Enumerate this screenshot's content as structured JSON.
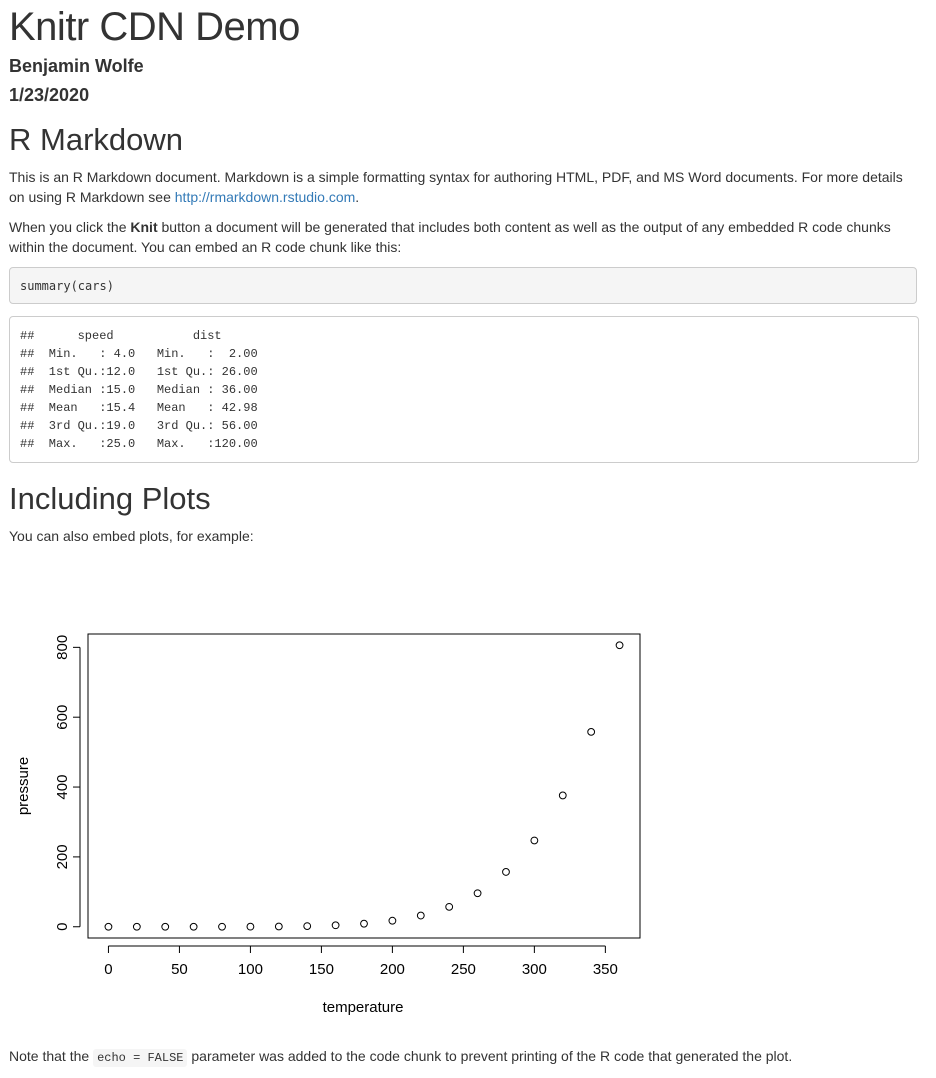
{
  "header": {
    "title": "Knitr CDN Demo",
    "author": "Benjamin Wolfe",
    "date": "1/23/2020"
  },
  "rmarkdown": {
    "heading": "R Markdown",
    "p1_text": "This is an R Markdown document. Markdown is a simple formatting syntax for authoring HTML, PDF, and MS Word documents. For more details on using R Markdown see ",
    "p1_link": "http://rmarkdown.rstudio.com",
    "p1_end": ".",
    "p2_pre": "When you click the ",
    "p2_bold": "Knit",
    "p2_post": " button a document will be generated that includes both content as well as the output of any embedded R code chunks within the document. You can embed an R code chunk like this:",
    "code": "summary(cars)",
    "output_lines": [
      "##      speed           dist       ",
      "##  Min.   : 4.0   Min.   :  2.00  ",
      "##  1st Qu.:12.0   1st Qu.: 26.00  ",
      "##  Median :15.0   Median : 36.00  ",
      "##  Mean   :15.4   Mean   : 42.98  ",
      "##  3rd Qu.:19.0   3rd Qu.: 56.00  ",
      "##  Max.   :25.0   Max.   :120.00  "
    ]
  },
  "plots": {
    "heading": "Including Plots",
    "intro": "You can also embed plots, for example:",
    "note_pre": "Note that the ",
    "note_code": "echo = FALSE",
    "note_post": " parameter was added to the code chunk to prevent printing of the R code that generated the plot."
  },
  "chart_data": {
    "type": "scatter",
    "title": "",
    "xlabel": "temperature",
    "ylabel": "pressure",
    "x": [
      0,
      20,
      40,
      60,
      80,
      100,
      120,
      140,
      160,
      180,
      200,
      220,
      240,
      260,
      280,
      300,
      320,
      340,
      360
    ],
    "y": [
      0.0002,
      0.0012,
      0.006,
      0.03,
      0.09,
      0.27,
      0.75,
      1.85,
      4.2,
      8.8,
      17.3,
      32.1,
      57,
      96,
      157,
      247,
      376,
      558,
      806
    ],
    "xticks": [
      0,
      50,
      100,
      150,
      200,
      250,
      300,
      350
    ],
    "yticks": [
      0,
      200,
      400,
      600,
      800
    ],
    "xlim": [
      -14.4,
      374.4
    ],
    "ylim": [
      -32.2,
      838.2
    ],
    "grid": false,
    "marker": "open-circle"
  }
}
